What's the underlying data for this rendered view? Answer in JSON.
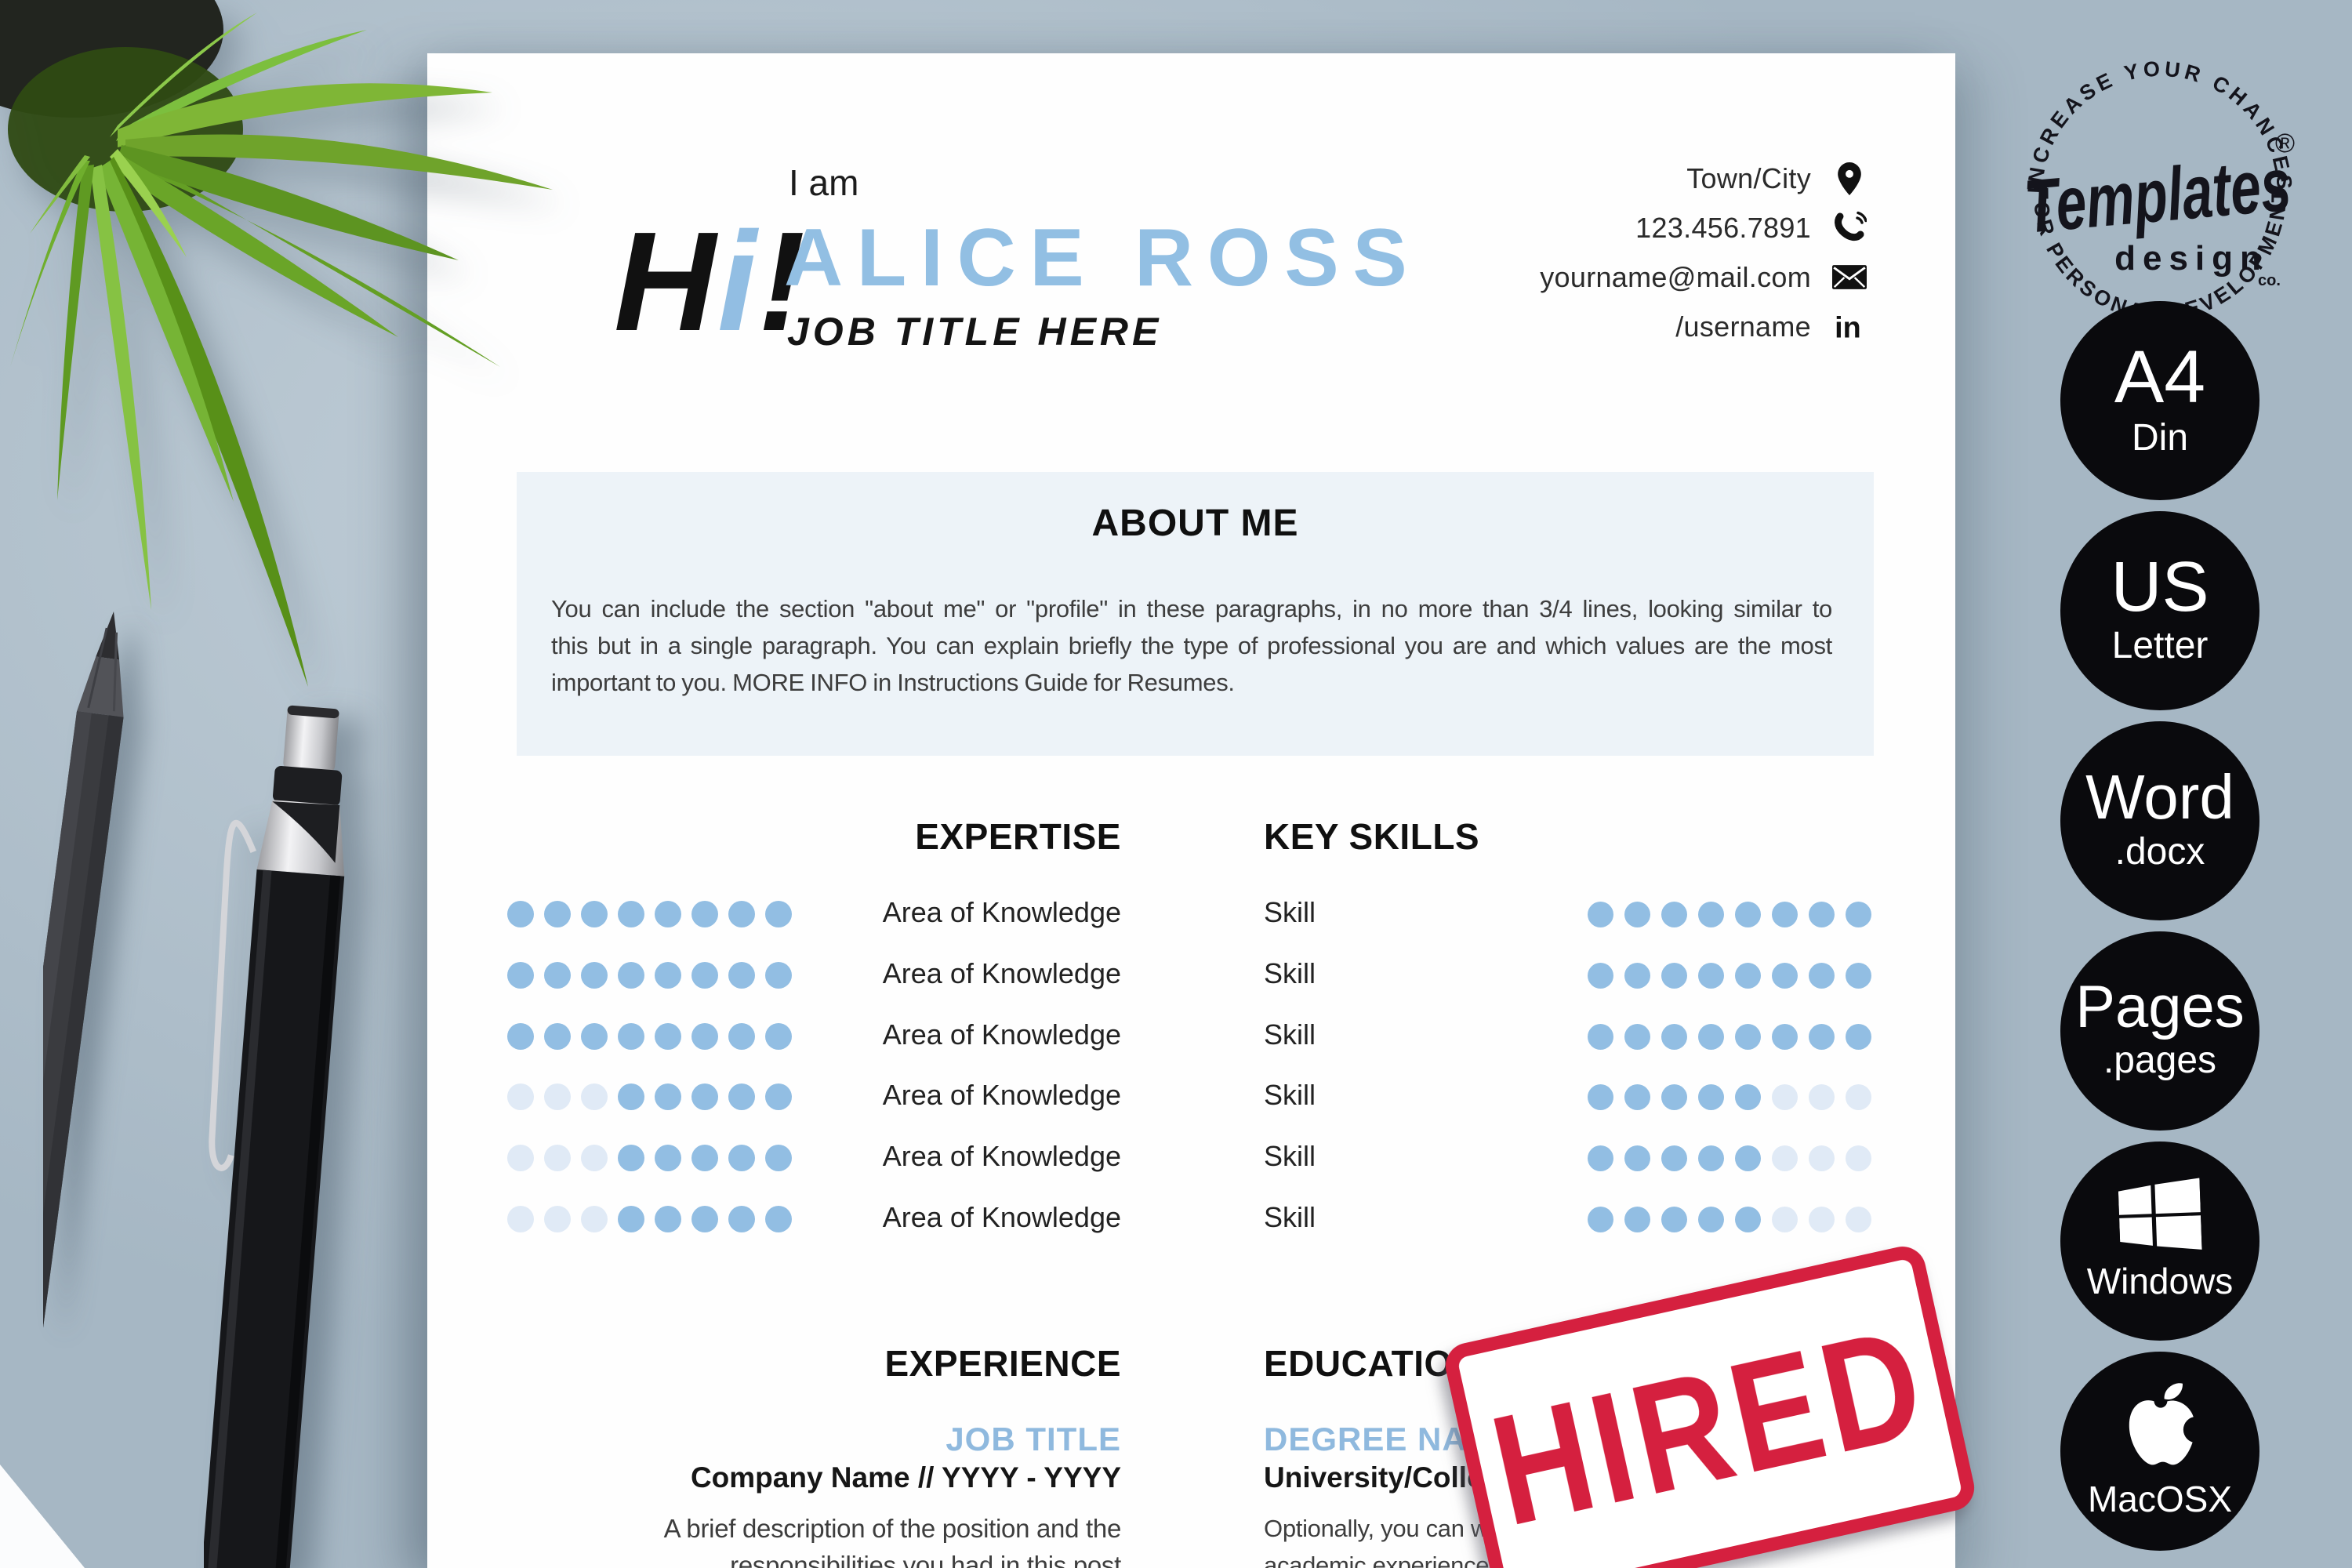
{
  "theme": {
    "accent_blue": "#92bee3",
    "pale_dot_blue": "#e0eaf6",
    "about_bg": "#edf3f8",
    "stamp_red": "#d5203f",
    "badge_black": "#0a0a0d",
    "background_gray_blue": "#b4c3ce",
    "paper_white": "#fefefe"
  },
  "header": {
    "logo": {
      "h": "H",
      "i": "i",
      "exclaim": "!"
    },
    "intro": "I am",
    "name": "ALICE ROSS",
    "job_title": "JOB TITLE HERE",
    "contact": [
      {
        "label": "Town/City",
        "icon": "location-pin-icon"
      },
      {
        "label": "123.456.7891",
        "icon": "phone-icon"
      },
      {
        "label": "yourname@mail.com",
        "icon": "envelope-icon"
      },
      {
        "label": "/username",
        "icon": "linkedin-icon"
      }
    ]
  },
  "about": {
    "title": "ABOUT ME",
    "body_lines": [
      "You can include the section \"about me\" or \"profile\" in these paragraphs, in no more than 3/4 lines, looking similar to",
      "this but in a single paragraph. You can explain briefly the type of professional you are and which values are the most",
      "important to you. MORE INFO in Instructions Guide for Resumes."
    ]
  },
  "skills": {
    "expertise_title": "EXPERTISE",
    "key_skills_title": "KEY SKILLS",
    "dots_max": 8,
    "expertise": [
      {
        "label": "Area of Knowledge",
        "rating": 8
      },
      {
        "label": "Area of Knowledge",
        "rating": 8
      },
      {
        "label": "Area of Knowledge",
        "rating": 8
      },
      {
        "label": "Area of Knowledge",
        "rating": 5
      },
      {
        "label": "Area of Knowledge",
        "rating": 5
      },
      {
        "label": "Area of Knowledge",
        "rating": 5
      }
    ],
    "key_skills": [
      {
        "label": "Skill",
        "rating": 8
      },
      {
        "label": "Skill",
        "rating": 8
      },
      {
        "label": "Skill",
        "rating": 8
      },
      {
        "label": "Skill",
        "rating": 5
      },
      {
        "label": "Skill",
        "rating": 5
      },
      {
        "label": "Skill",
        "rating": 5
      }
    ]
  },
  "experience": {
    "title": "EXPERIENCE",
    "entries": [
      {
        "job_title": "JOB TITLE",
        "company_line": "Company Name // YYYY - YYYY",
        "description_lines": [
          "A brief description of the position and the",
          "responsibilities you had in this post"
        ]
      }
    ]
  },
  "education": {
    "title": "EDUCATION",
    "entries": [
      {
        "degree": "DEGREE NAME/MASTER NAME",
        "school_line": "University/College // YYYY - YYYY",
        "description_lines": [
          "Optionally, you can write a short text describing your",
          "academic experience and your goals."
        ]
      }
    ]
  },
  "stamp": {
    "text": "HIRED"
  },
  "branding": {
    "logo": {
      "arc_top": "INCREASE YOUR CHANCES",
      "arc_bottom": "FOR PERSONAL DEVELOPMENT",
      "script": "Templates",
      "sub": "design",
      "co": "co.",
      "registered": "®"
    },
    "badges": [
      {
        "line1": "A4",
        "line2": "Din",
        "size1": 95
      },
      {
        "line1": "US",
        "line2": "Letter",
        "size1": 90
      },
      {
        "line1": "Word",
        "line2": ".docx",
        "size1": 80
      },
      {
        "line1": "Pages",
        "line2": ".pages",
        "size1": 76
      },
      {
        "line1": "Windows",
        "icon": "windows-logo-icon"
      },
      {
        "line1": "MacOSX",
        "icon": "apple-logo-icon"
      }
    ]
  }
}
